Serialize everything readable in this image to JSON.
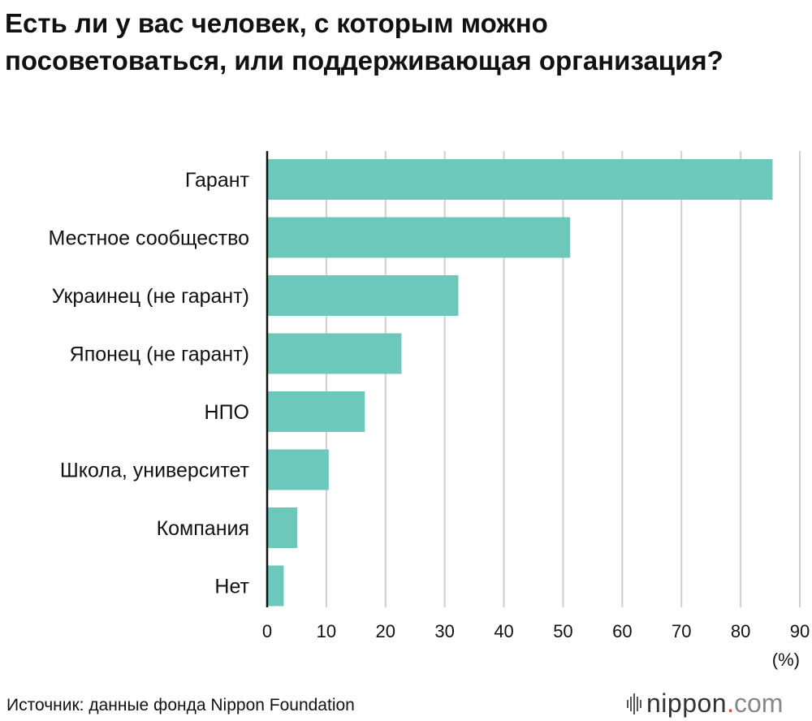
{
  "chart_data": {
    "type": "bar",
    "orientation": "horizontal",
    "title": "Есть ли у вас человек, с которым можно посоветоваться, или поддерживающая организация?",
    "categories": [
      "Гарант",
      "Местное сообщество",
      "Украинец (не гарант)",
      "Японец (не гарант)",
      "НПО",
      "Школа, университет",
      "Компания",
      "Нет"
    ],
    "values": [
      85.4,
      51.2,
      32.3,
      22.7,
      16.5,
      10.4,
      5.1,
      2.8
    ],
    "xlim": [
      0,
      90
    ],
    "xticks": [
      "0",
      "10",
      "20",
      "30",
      "40",
      "50",
      "60",
      "70",
      "80",
      "90"
    ],
    "xunit": "(%)",
    "grid": true,
    "bar_color": "#6cc8bb"
  },
  "source": "Источник: данные фонда Nippon Foundation",
  "logo": {
    "name": "nippon",
    "dot": ".",
    "tld": "com"
  }
}
